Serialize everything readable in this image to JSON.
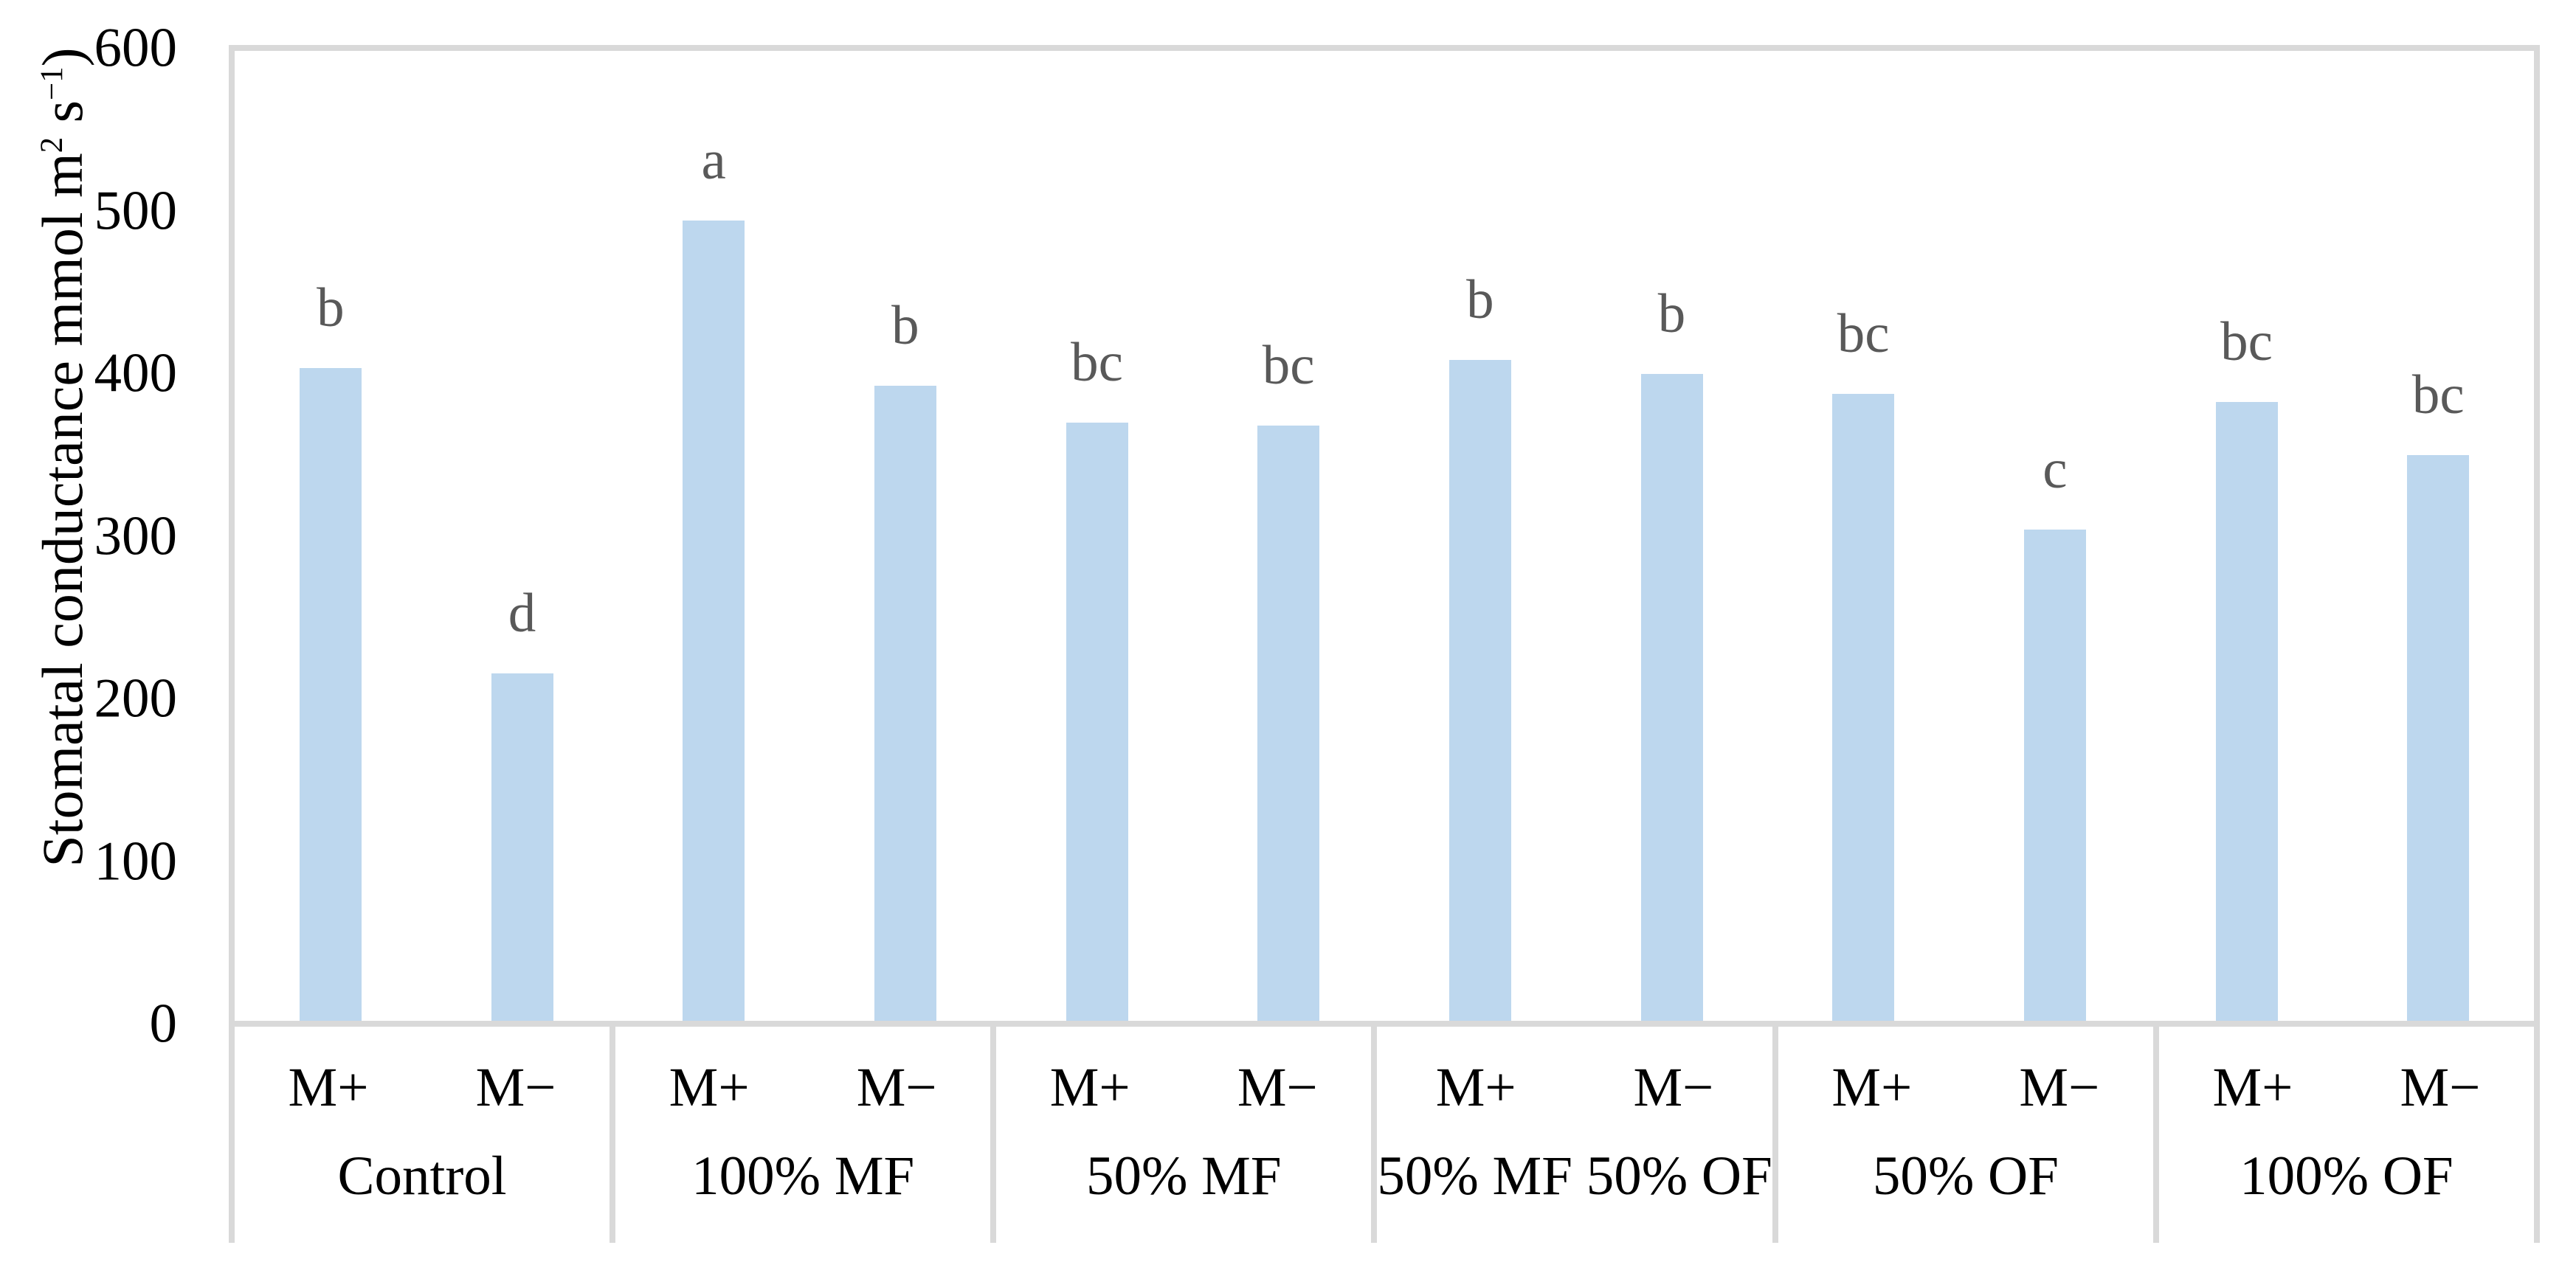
{
  "chart_data": {
    "type": "bar",
    "title": "",
    "ylabel_parts": {
      "main": "Stomatal conductance mmol m",
      "sup1": "2",
      "mid": " s",
      "sup2": "−1",
      "end": ")"
    },
    "y_axis": {
      "min": 0,
      "max": 600,
      "step": 100,
      "ticks": [
        0,
        100,
        200,
        300,
        400,
        500,
        600
      ]
    },
    "x_axis": {
      "sub_labels": [
        "M+",
        "M−"
      ],
      "group_labels": [
        "Control",
        "100% MF",
        "50% MF",
        "50% MF 50% OF",
        "50% OF",
        "100% OF"
      ]
    },
    "groups": [
      {
        "label": "Control",
        "bars": [
          {
            "x_label": "M+",
            "value": 404,
            "letter": "b"
          },
          {
            "x_label": "M−",
            "value": 215,
            "letter": "d"
          }
        ]
      },
      {
        "label": "100% MF",
        "bars": [
          {
            "x_label": "M+",
            "value": 495,
            "letter": "a"
          },
          {
            "x_label": "M−",
            "value": 393,
            "letter": "b"
          }
        ]
      },
      {
        "label": "50% MF",
        "bars": [
          {
            "x_label": "M+",
            "value": 370,
            "letter": "bc"
          },
          {
            "x_label": "M−",
            "value": 368,
            "letter": "bc"
          }
        ]
      },
      {
        "label": "50% MF 50% OF",
        "bars": [
          {
            "x_label": "M+",
            "value": 409,
            "letter": "b"
          },
          {
            "x_label": "M−",
            "value": 400,
            "letter": "b"
          }
        ]
      },
      {
        "label": "50% OF",
        "bars": [
          {
            "x_label": "M+",
            "value": 388,
            "letter": "bc"
          },
          {
            "x_label": "M−",
            "value": 304,
            "letter": "c"
          }
        ]
      },
      {
        "label": "100% OF",
        "bars": [
          {
            "x_label": "M+",
            "value": 383,
            "letter": "bc"
          },
          {
            "x_label": "M−",
            "value": 350,
            "letter": "bc"
          }
        ]
      }
    ],
    "colors": {
      "bar_fill": "#BDD7EE",
      "letter_color": "#595959",
      "axis_line_color": "#D9D9D9",
      "text_color": "#000000"
    },
    "layout_hints": {
      "grid": "off",
      "legend": "none",
      "letters_above_bars": true
    }
  }
}
